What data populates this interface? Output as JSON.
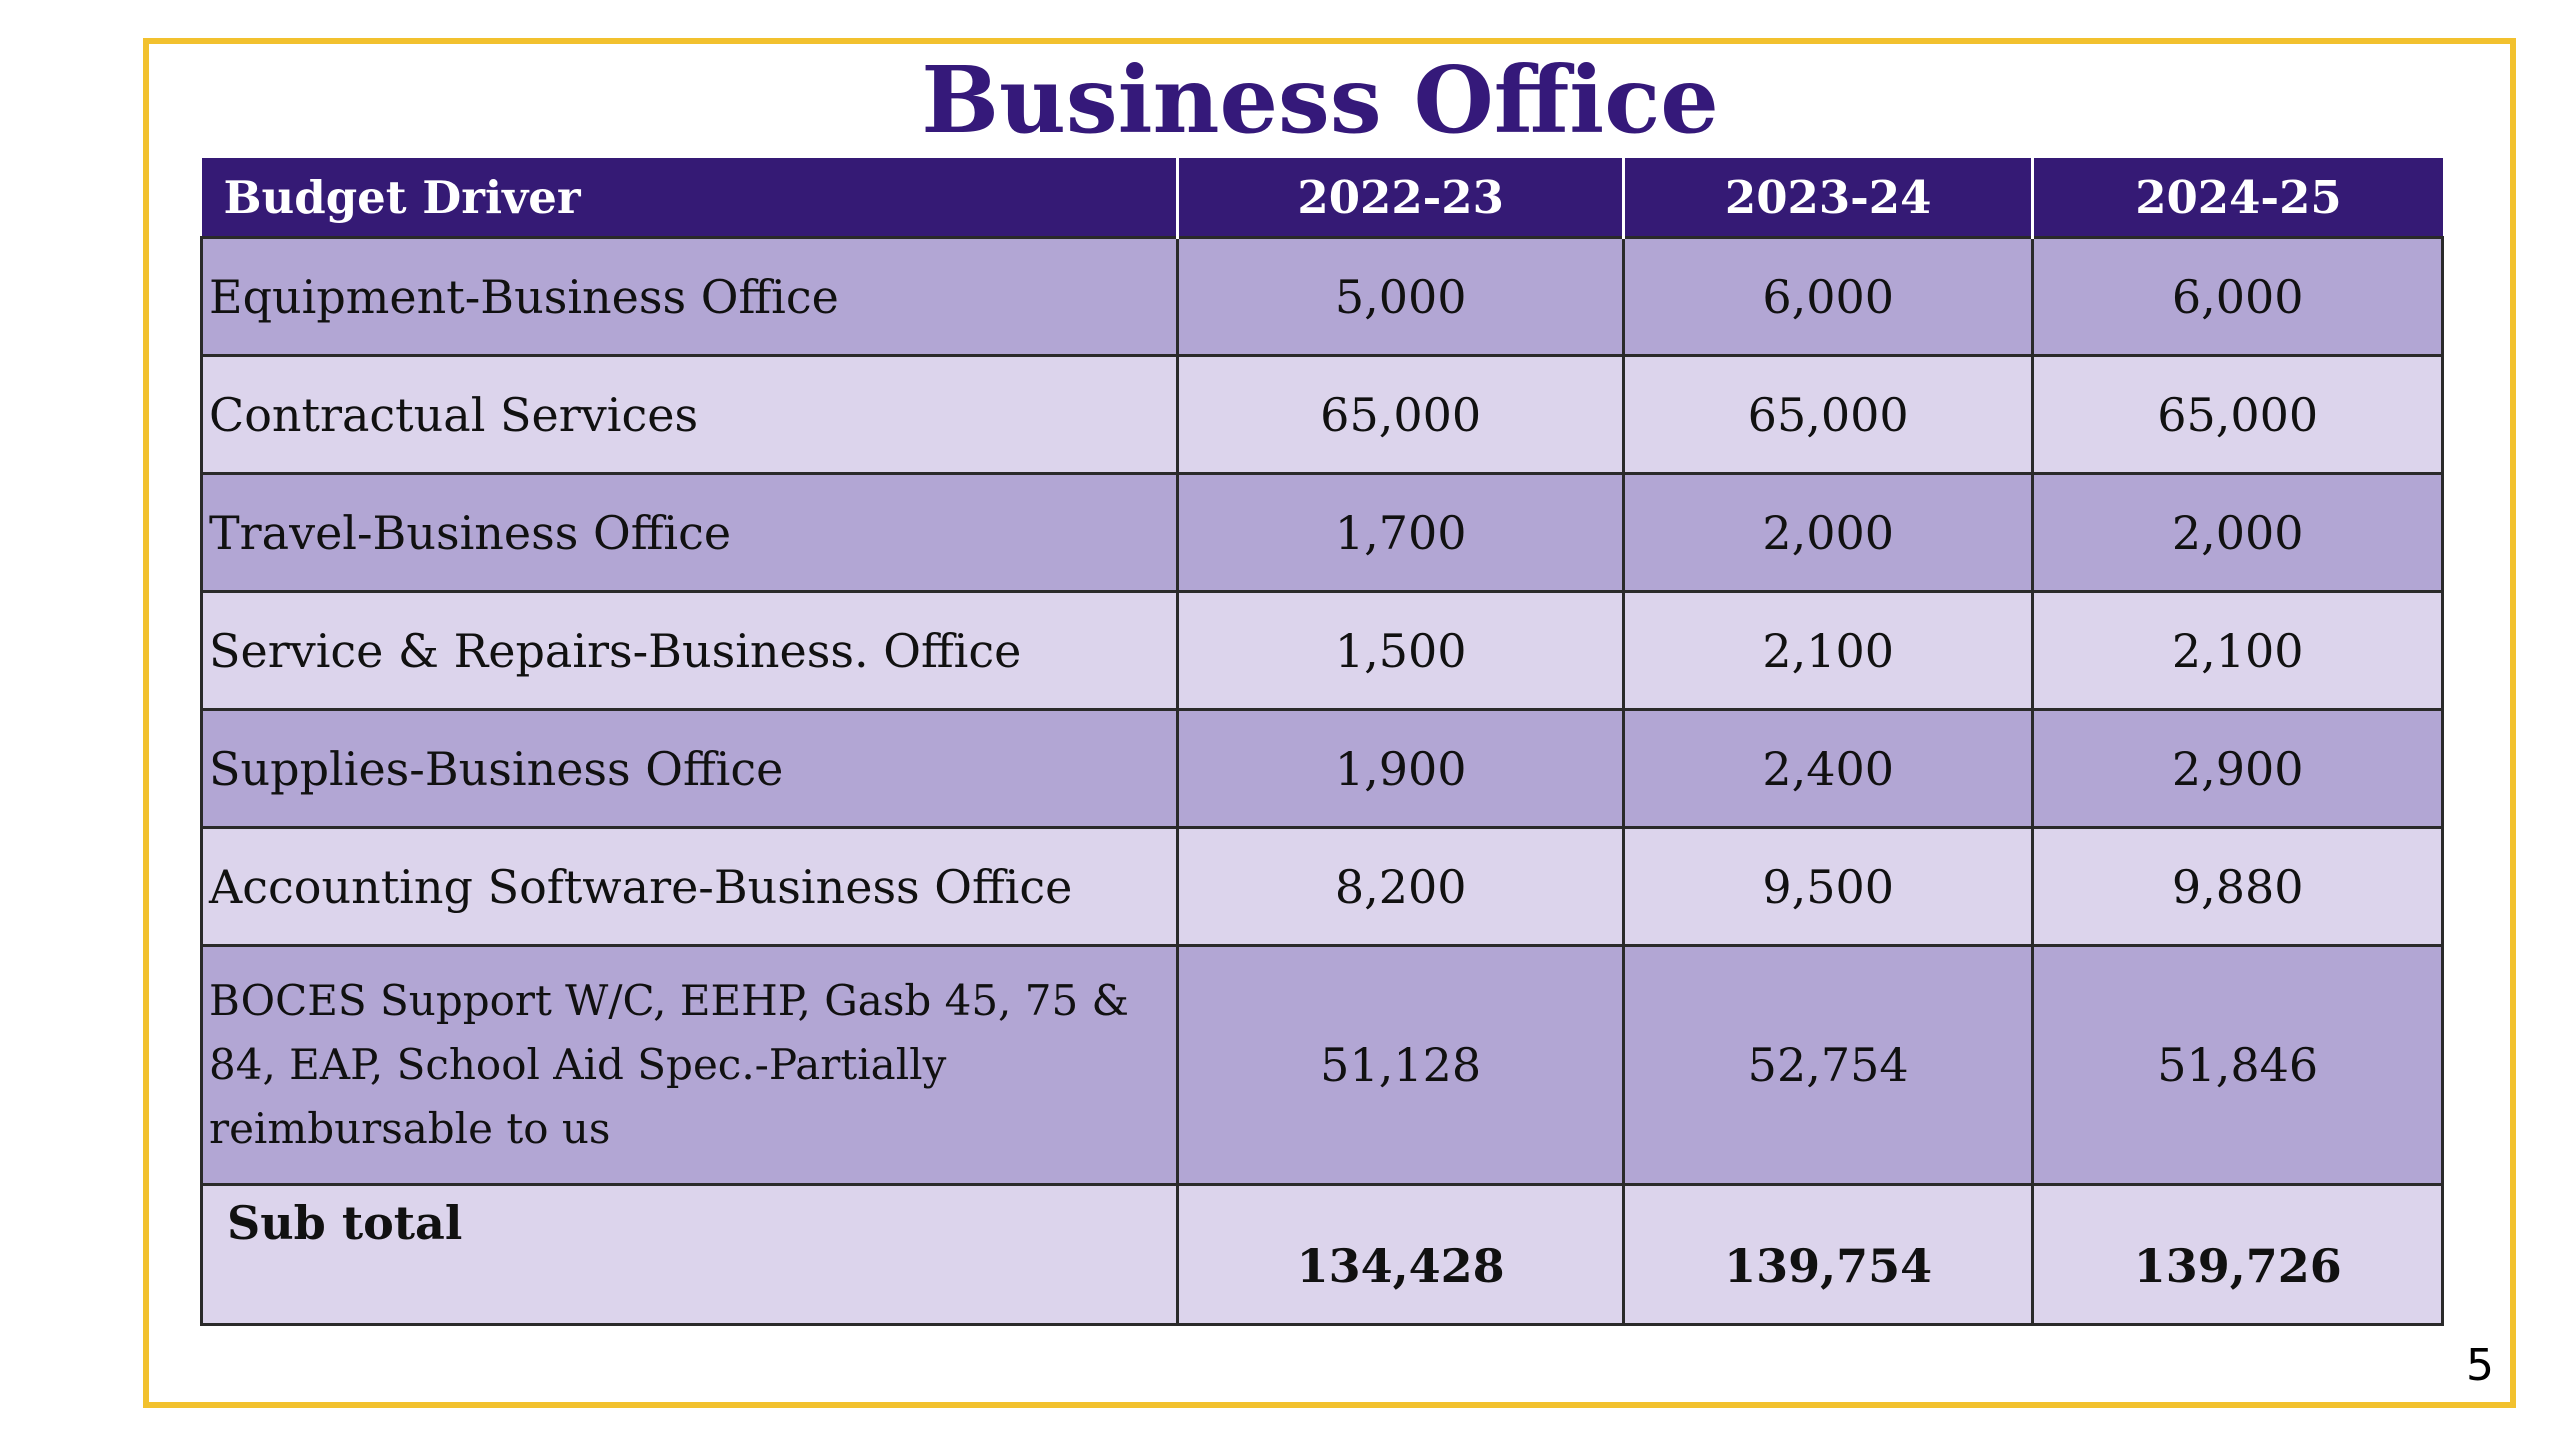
{
  "slide": {
    "title": "Business Office",
    "page_number": "5"
  },
  "colors": {
    "title": "#35197a",
    "header_bg": "#351a75",
    "row_dark": "#b2a6d4",
    "row_light": "#dcd4ec",
    "frame": "#f2c12e"
  },
  "table": {
    "headers": [
      "Budget Driver",
      "2022-23",
      "2023-24",
      "2024-25"
    ],
    "rows": [
      {
        "label": "Equipment-Business Office",
        "values": [
          "5,000",
          "6,000",
          "6,000"
        ]
      },
      {
        "label": "Contractual Services",
        "values": [
          "65,000",
          "65,000",
          "65,000"
        ]
      },
      {
        "label": "Travel-Business Office",
        "values": [
          "1,700",
          "2,000",
          "2,000"
        ]
      },
      {
        "label": "Service & Repairs-Business. Office",
        "values": [
          "1,500",
          "2,100",
          "2,100"
        ]
      },
      {
        "label": "Supplies-Business Office",
        "values": [
          "1,900",
          "2,400",
          "2,900"
        ]
      },
      {
        "label": "Accounting Software-Business Office",
        "values": [
          "8,200",
          "9,500",
          "9,880"
        ]
      },
      {
        "label": "BOCES Support W/C, EEHP, Gasb 45, 75 & 84, EAP, School Aid Spec.-Partially reimbursable to us",
        "values": [
          "51,128",
          "52,754",
          "51,846"
        ]
      }
    ],
    "subtotal": {
      "label": "Sub total",
      "values": [
        "134,428",
        "139,754",
        "139,726"
      ]
    }
  }
}
